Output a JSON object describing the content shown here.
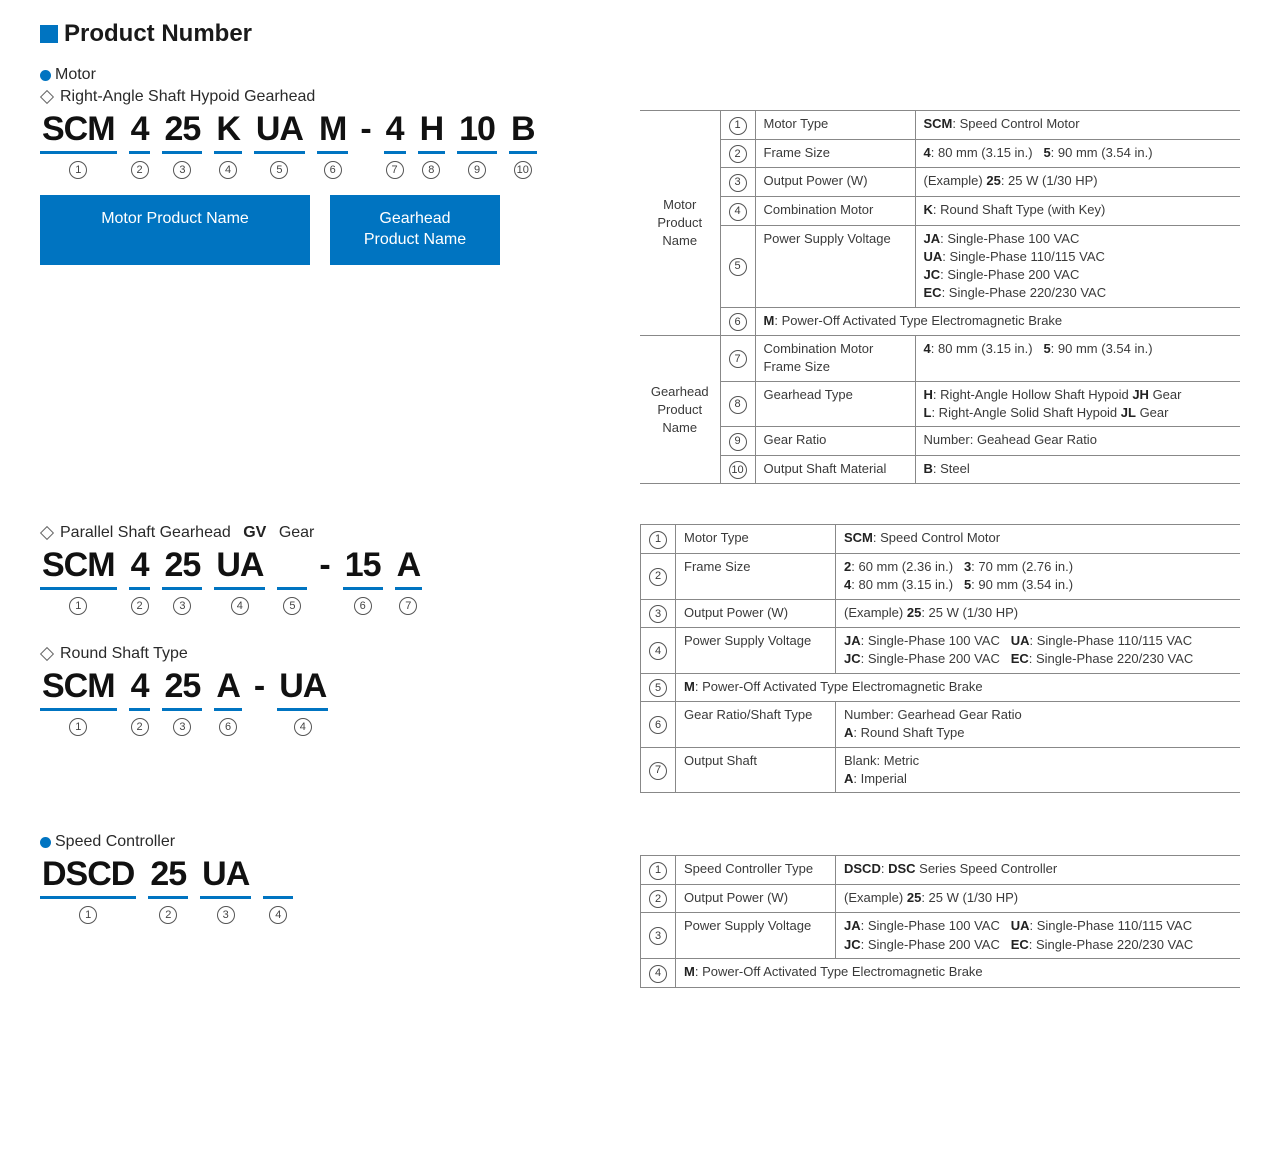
{
  "title": "Product Number",
  "motor_heading": "Motor",
  "hypoid_heading": "Right-Angle Shaft Hypoid Gearhead",
  "parallel_heading": "Parallel Shaft Gearhead",
  "parallel_heading_bold": "GV",
  "parallel_heading_suffix": "Gear",
  "round_heading": "Round Shaft Type",
  "speed_heading": "Speed Controller",
  "motor_box": "Motor Product Name",
  "gearhead_box": "Gearhead Product Name",
  "code1": [
    "SCM",
    "4",
    "25",
    "K",
    "UA",
    "M",
    "-",
    "4",
    "H",
    "10",
    "B"
  ],
  "code1_nums": [
    "1",
    "2",
    "3",
    "4",
    "5",
    "6",
    "",
    "7",
    "8",
    "9",
    "10"
  ],
  "code2": [
    "SCM",
    "4",
    "25",
    "UA",
    " ",
    "-",
    "15",
    "A"
  ],
  "code2_nums": [
    "1",
    "2",
    "3",
    "4",
    "5",
    "",
    "6",
    "7"
  ],
  "code3": [
    "SCM",
    "4",
    "25",
    "A",
    "-",
    "UA"
  ],
  "code3_nums": [
    "1",
    "2",
    "3",
    "6",
    "",
    "4"
  ],
  "code4": [
    "DSCD",
    "25",
    "UA",
    " "
  ],
  "code4_nums": [
    "1",
    "2",
    "3",
    "4"
  ],
  "t1_group_motor": "Motor Product Name",
  "t1_group_gear": "Gearhead Product Name",
  "t1": {
    "r1": {
      "n": "1",
      "l": "Motor Type",
      "d": "<b>SCM</b>: Speed Control Motor"
    },
    "r2": {
      "n": "2",
      "l": "Frame Size",
      "d": "<b>4</b>: 80 mm (3.15 in.)&nbsp;&nbsp;&nbsp;<b>5</b>: 90 mm (3.54 in.)"
    },
    "r3": {
      "n": "3",
      "l": "Output Power (W)",
      "d": "(Example) <b>25</b>: 25 W (1/30 HP)"
    },
    "r4": {
      "n": "4",
      "l": "Combination Motor",
      "d": "<b>K</b>: Round Shaft Type (with Key)"
    },
    "r5": {
      "n": "5",
      "l": "Power Supply Voltage",
      "d": "<b>JA</b>: Single-Phase 100 VAC<br><b>UA</b>: Single-Phase 110/115 VAC<br><b>JC</b>: Single-Phase 200 VAC<br><b>EC</b>: Single-Phase 220/230 VAC"
    },
    "r6": {
      "n": "6",
      "d": "<b>M</b>: Power-Off Activated Type Electromagnetic Brake"
    },
    "r7": {
      "n": "7",
      "l": "Combination Motor Frame Size",
      "d": "<b>4</b>: 80 mm (3.15 in.)&nbsp;&nbsp;&nbsp;<b>5</b>: 90 mm (3.54 in.)"
    },
    "r8": {
      "n": "8",
      "l": "Gearhead Type",
      "d": "<b>H</b>: Right-Angle Hollow Shaft Hypoid <b>JH</b> Gear<br><b>L</b>: Right-Angle Solid Shaft Hypoid <b>JL</b> Gear"
    },
    "r9": {
      "n": "9",
      "l": "Gear Ratio",
      "d": "Number: Geahead Gear Ratio"
    },
    "r10": {
      "n": "10",
      "l": "Output Shaft Material",
      "d": "<b>B</b>: Steel"
    }
  },
  "t2": {
    "r1": {
      "n": "1",
      "l": "Motor Type",
      "d": "<b>SCM</b>: Speed Control Motor"
    },
    "r2": {
      "n": "2",
      "l": "Frame Size",
      "d": "<b>2</b>: 60 mm (2.36 in.)&nbsp;&nbsp;&nbsp;<b>3</b>: 70 mm (2.76 in.)<br><b>4</b>: 80 mm (3.15 in.)&nbsp;&nbsp;&nbsp;<b>5</b>: 90 mm (3.54 in.)"
    },
    "r3": {
      "n": "3",
      "l": "Output Power (W)",
      "d": "(Example) <b>25</b>: 25 W (1/30 HP)"
    },
    "r4": {
      "n": "4",
      "l": "Power Supply Voltage",
      "d": "<b>JA</b>: Single-Phase 100 VAC&nbsp;&nbsp;&nbsp;<b>UA</b>: Single-Phase 110/115 VAC<br><b>JC</b>: Single-Phase 200 VAC&nbsp;&nbsp;&nbsp;<b>EC</b>: Single-Phase 220/230 VAC"
    },
    "r5": {
      "n": "5",
      "d": "<b>M</b>: Power-Off Activated Type Electromagnetic Brake"
    },
    "r6": {
      "n": "6",
      "l": "Gear Ratio/Shaft Type",
      "d": "Number: Gearhead Gear Ratio<br><b>A</b>: Round Shaft Type"
    },
    "r7": {
      "n": "7",
      "l": "Output Shaft",
      "d": "Blank: Metric<br><b>A</b>: Imperial"
    }
  },
  "t3": {
    "r1": {
      "n": "1",
      "l": "Speed Controller Type",
      "d": "<b>DSCD</b>: <b>DSC</b> Series Speed Controller"
    },
    "r2": {
      "n": "2",
      "l": "Output Power (W)",
      "d": "(Example) <b>25</b>: 25 W (1/30 HP)"
    },
    "r3": {
      "n": "3",
      "l": "Power Supply Voltage",
      "d": "<b>JA</b>: Single-Phase 100 VAC&nbsp;&nbsp;&nbsp;<b>UA</b>: Single-Phase 110/115 VAC<br><b>JC</b>: Single-Phase 200 VAC&nbsp;&nbsp;&nbsp;<b>EC</b>: Single-Phase 220/230 VAC"
    },
    "r4": {
      "n": "4",
      "d": "<b>M</b>: Power-Off Activated Type Electromagnetic Brake"
    }
  }
}
